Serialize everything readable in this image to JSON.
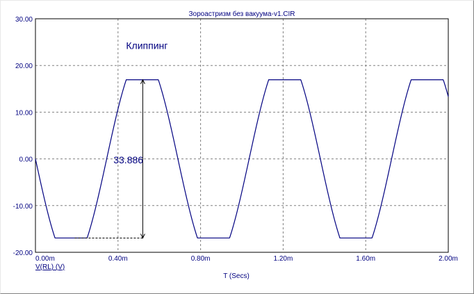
{
  "chart_data": {
    "type": "line",
    "title": "Зороастризм без вакуума-v1.CIR",
    "xlabel": "T (Secs)",
    "ylabel": "",
    "series": [
      {
        "name": "V(RL) (V)",
        "color": "#000080",
        "amplitude": 16.943,
        "frequency_hz": 1449,
        "x_range": [
          0,
          0.002
        ],
        "points_x": [
          0,
          0.0001,
          0.00015,
          0.0002,
          0.0003,
          0.00045,
          0.0005,
          0.0006,
          0.0007,
          0.0008,
          0.0009,
          0.001,
          0.00112,
          0.00119,
          0.0013,
          0.0014,
          0.0015,
          0.0016,
          0.0017,
          0.00185,
          0.0019,
          0.002
        ],
        "points_y": [
          0.0,
          -15.0,
          -17.0,
          -16.5,
          -6.0,
          16.5,
          16.9,
          8.0,
          -8.0,
          -17.0,
          -13.0,
          1.0,
          16.5,
          16.9,
          6.0,
          -9.0,
          -17.0,
          -11.0,
          5.0,
          16.9,
          14.0,
          0.0
        ]
      }
    ],
    "xlim": [
      0,
      0.002
    ],
    "ylim": [
      -20,
      30
    ],
    "x_ticks": [
      0,
      0.0004,
      0.0008,
      0.0012,
      0.0016,
      0.002
    ],
    "x_tick_labels": [
      "0.00m",
      "0.40m",
      "0.80m",
      "1.20m",
      "1.60m",
      "2.00m"
    ],
    "y_ticks": [
      -20,
      -10,
      0,
      10,
      20,
      30
    ],
    "y_tick_labels": [
      "-20.00",
      "-10.00",
      "0.00",
      "10.00",
      "20.00",
      "30.00"
    ],
    "grid": true,
    "annotations": [
      {
        "text": "Клиппинг",
        "x": 0.00054,
        "y": 23.5
      },
      {
        "text": "33.886",
        "x": 0.00045,
        "y": -0.2,
        "measure_from": [
          0.00019,
          -16.943
        ],
        "measure_to": [
          0.00052,
          16.943
        ]
      }
    ]
  }
}
